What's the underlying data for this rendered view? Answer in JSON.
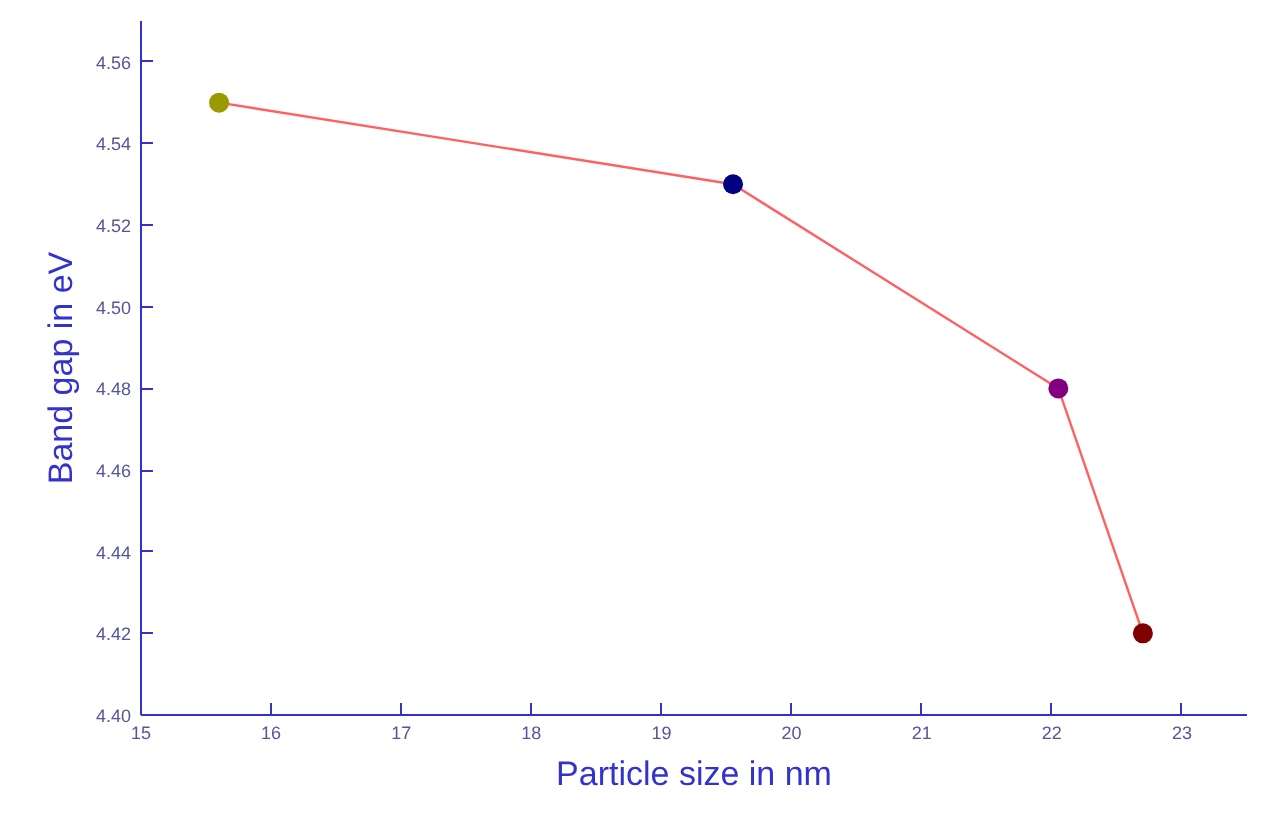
{
  "chart_data": {
    "type": "line",
    "xlabel": "Particle size in nm",
    "ylabel": "Band gap in eV",
    "x": [
      15.6,
      19.55,
      22.05,
      22.7
    ],
    "series": [
      {
        "color": "#ff6060",
        "values": [
          4.55,
          4.53,
          4.48,
          4.42
        ],
        "colors": [
          "#999900",
          "#000080",
          "#800080",
          "#800000"
        ]
      }
    ],
    "xlim": [
      15,
      23.5
    ],
    "xticks": [
      15,
      16,
      17,
      18,
      19,
      20,
      21,
      22,
      23
    ],
    "ylim": [
      4.4,
      4.57
    ],
    "yticks": [
      {
        "value": 4.4,
        "label": "4.40"
      },
      {
        "value": 4.42,
        "label": "4.42"
      },
      {
        "value": 4.44,
        "label": "4.44"
      },
      {
        "value": 4.46,
        "label": "4.46"
      },
      {
        "value": 4.48,
        "label": "4.48"
      },
      {
        "value": 4.5,
        "label": "4.50"
      },
      {
        "value": 4.52,
        "label": "4.52"
      },
      {
        "value": 4.54,
        "label": "4.54"
      },
      {
        "value": 4.56,
        "label": "4.56"
      }
    ],
    "grid": false,
    "marker": "circle",
    "line_style": "solid"
  }
}
